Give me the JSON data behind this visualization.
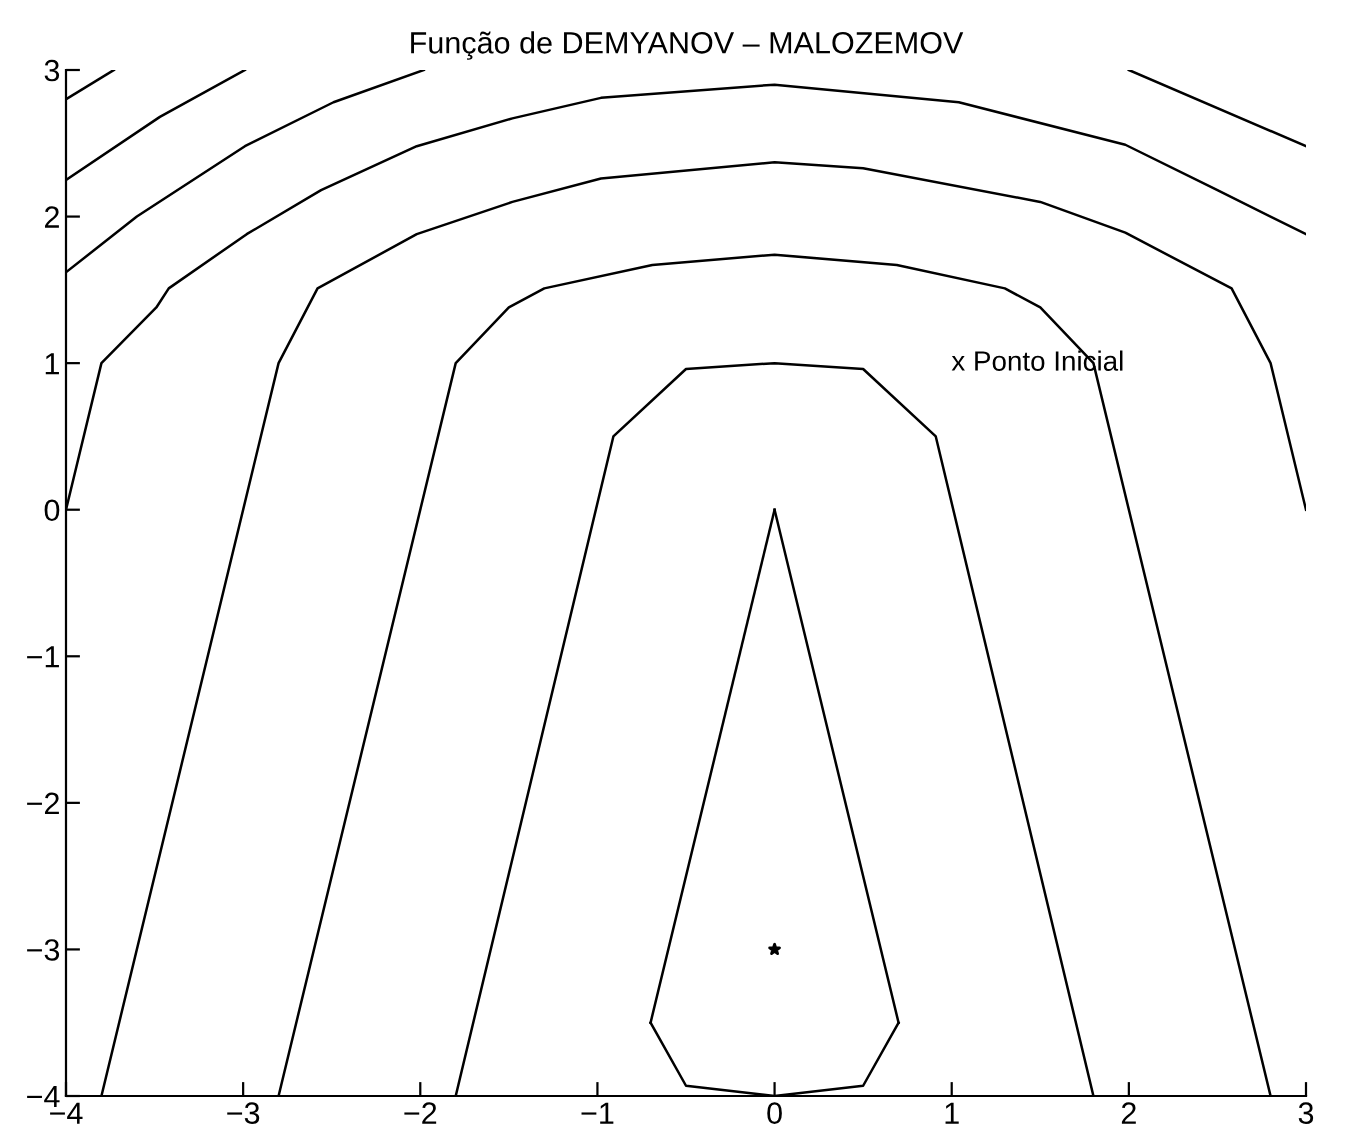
{
  "chart_data": {
    "type": "line",
    "title": "Função de DEMYANOV – MALOZEMOV",
    "xlim": [
      -4,
      3
    ],
    "ylim": [
      -4,
      3
    ],
    "xticks": [
      -4,
      -3,
      -2,
      -1,
      0,
      1,
      2,
      3
    ],
    "yticks": [
      -4,
      -3,
      -2,
      -1,
      0,
      1,
      2,
      3
    ],
    "grid": false,
    "marker": "none",
    "line_style": "solid",
    "series": [
      {
        "color": "#000000",
        "x": [
          -0.7,
          0
        ],
        "values": [
          -3.5,
          0
        ]
      },
      {
        "color": "#000000",
        "x": [
          0,
          0.7
        ],
        "values": [
          0,
          -3.5
        ]
      },
      {
        "color": "#000000",
        "x": [
          -0.7,
          -0.5,
          0,
          0.5,
          0.7
        ],
        "values": [
          -3.5,
          -3.93,
          -4,
          -3.93,
          -3.5
        ]
      },
      {
        "color": "#000000",
        "x": [
          -1.8,
          -0.91,
          -0.5,
          0,
          0.5,
          0.91,
          1.8
        ],
        "values": [
          -4,
          0.5,
          0.96,
          1,
          0.96,
          0.5,
          -4
        ]
      },
      {
        "color": "#000000",
        "x": [
          -2.8,
          -1.8,
          -1.5,
          -1.3,
          -0.69,
          0,
          0.69,
          1.3,
          1.5,
          1.8,
          2.8
        ],
        "values": [
          -4,
          1,
          1.38,
          1.51,
          1.67,
          1.74,
          1.67,
          1.51,
          1.38,
          1,
          -4
        ]
      },
      {
        "color": "#000000",
        "x": [
          -3.8,
          -2.8,
          -2.58,
          -2.02,
          -1.48,
          -0.98,
          0,
          0.5,
          1.5,
          1.98,
          2.58,
          2.8,
          3
        ],
        "values": [
          -4,
          1,
          1.51,
          1.88,
          2.1,
          2.26,
          2.37,
          2.33,
          2.1,
          1.89,
          1.51,
          1,
          0
        ]
      },
      {
        "color": "#000000",
        "x": [
          -4,
          -3.8,
          -3.49,
          -3.42,
          -2.98,
          -2.56,
          -2.02,
          -1.48,
          -0.98,
          0,
          1.04,
          1.98,
          2.5,
          3
        ],
        "values": [
          0,
          1,
          1.38,
          1.51,
          1.88,
          2.18,
          2.48,
          2.67,
          2.81,
          2.9,
          2.78,
          2.49,
          2.18,
          1.88
        ]
      },
      {
        "color": "#000000",
        "x": [
          -4,
          -3.6,
          -2.99,
          -2.49,
          -1.98
        ],
        "values": [
          1.62,
          2.0,
          2.48,
          2.78,
          3.0
        ]
      },
      {
        "color": "#000000",
        "x": [
          2.0,
          3
        ],
        "values": [
          3.0,
          2.48
        ]
      },
      {
        "color": "#000000",
        "x": [
          -4,
          -3.47,
          -2.99
        ],
        "values": [
          2.25,
          2.68,
          3.0
        ]
      },
      {
        "color": "#000000",
        "x": [
          -4,
          -3.73
        ],
        "values": [
          2.8,
          3.0
        ]
      },
      {
        "type": "scatter",
        "marker": "star",
        "color": "#000000",
        "x": [
          0
        ],
        "values": [
          -3
        ]
      }
    ],
    "annotations": [
      "x Ponto Inicial"
    ]
  }
}
